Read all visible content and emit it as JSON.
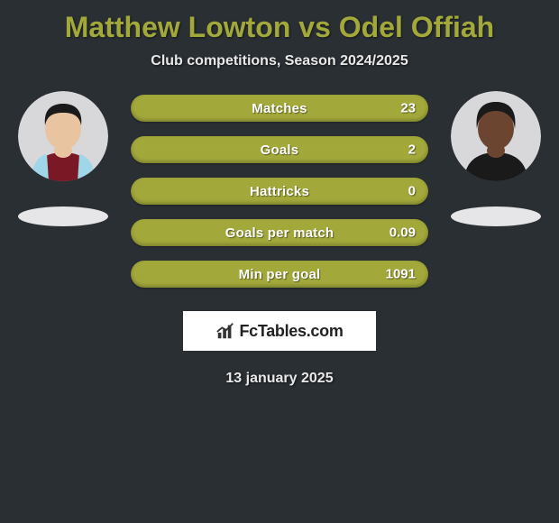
{
  "title_color": "#a2a83a",
  "background_color": "#2a2f33",
  "player1": {
    "name": "Matthew Lowton"
  },
  "player2": {
    "name": "Odel Offiah"
  },
  "vs_word": "vs",
  "subtitle": "Club competitions, Season 2024/2025",
  "avatar1": {
    "bg": "#d8d8da",
    "skin": "#e8c4a0",
    "hair": "#1a1a1a",
    "shirt_main": "#7b1826",
    "shirt_sleeve": "#9fd6e8"
  },
  "avatar2": {
    "bg": "#d8d8da",
    "skin": "#6b4530",
    "hair": "#1a1a1a",
    "shirt_main": "#1a1a1a"
  },
  "shadow_color": "#e6e6e8",
  "stats": {
    "bar_color": "#a2a83a",
    "rows": [
      {
        "label": "Matches",
        "left": "",
        "right": "23"
      },
      {
        "label": "Goals",
        "left": "",
        "right": "2"
      },
      {
        "label": "Hattricks",
        "left": "",
        "right": "0"
      },
      {
        "label": "Goals per match",
        "left": "",
        "right": "0.09"
      },
      {
        "label": "Min per goal",
        "left": "",
        "right": "1091"
      }
    ]
  },
  "logo": {
    "text": "FcTables.com",
    "icon_color": "#333333"
  },
  "date": "13 january 2025"
}
